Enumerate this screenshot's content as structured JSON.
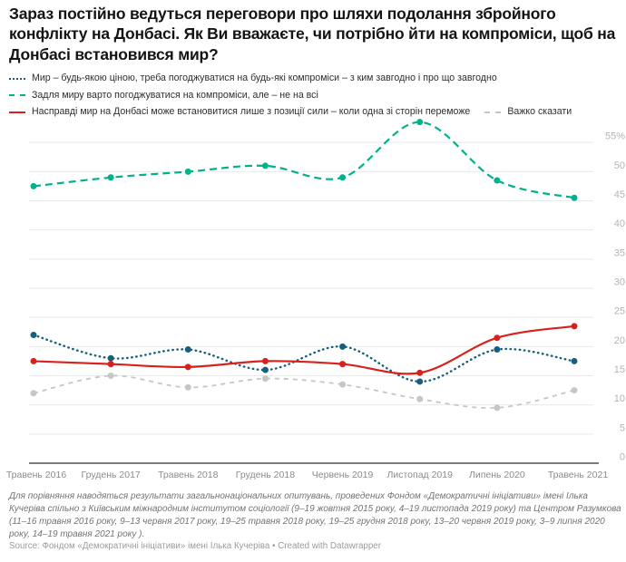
{
  "header": {
    "title": "Зараз постійно ведуться переговори про шляхи подолання збройного конфлікту на Донбасі. Як Ви вважаєте, чи потрібно йти на компроміси, щоб на Донбасі встановився мир?"
  },
  "legend": {
    "items": [
      {
        "label": "Мир – будь-якою ціною, треба погоджуватися на будь-які компроміси – з ким завгодно і про що завгодно",
        "color": "#17607d",
        "style": "dotted"
      },
      {
        "label": "Задля миру варто погоджуватися на компроміси, але – не на всі",
        "color": "#00b189",
        "style": "dashed"
      },
      {
        "label": "Насправді мир на Донбасі може встановитися лише з позиції сили – коли одна зі сторін переможе",
        "color": "#d8211c",
        "style": "solid"
      },
      {
        "label": "Важко сказати",
        "color": "#c6c6c6",
        "style": "dashed"
      }
    ]
  },
  "chart_data": {
    "type": "line",
    "categories": [
      "Травень 2016",
      "Грудень 2017",
      "Травень 2018",
      "Грудень 2018",
      "Червень 2019",
      "Листопад 2019",
      "Липень 2020",
      "Травень 2021"
    ],
    "series": [
      {
        "name": "Мир – будь-якою ціною, треба погоджуватися на будь-які компроміси – з ким завгодно і про що завгодно",
        "color": "#17607d",
        "dash": "dotted",
        "values": [
          22,
          18,
          19.5,
          16,
          20,
          14,
          19.5,
          17.5
        ]
      },
      {
        "name": "Задля миру варто погоджуватися на компроміси, але – не на всі",
        "color": "#00b189",
        "dash": "dashed",
        "values": [
          47.5,
          49,
          50,
          51,
          49,
          58.5,
          48.5,
          45.5
        ]
      },
      {
        "name": "Насправді мир на Донбасі може встановитися лише з позиції сили – коли одна зі сторін переможе",
        "color": "#d8211c",
        "dash": "solid",
        "values": [
          17.5,
          17,
          16.5,
          17.5,
          17,
          15.5,
          21.5,
          23.5
        ]
      },
      {
        "name": "Важко сказати",
        "color": "#c6c6c6",
        "dash": "dashed-light",
        "values": [
          12,
          15,
          13,
          14.5,
          13.5,
          11,
          9.5,
          12.5
        ]
      }
    ],
    "title": "Зараз постійно ведуться переговори про шляхи подолання збройного конфлікту на Донбасі. Як Ви вважаєте, чи потрібно йти на компроміси, щоб на Донбасі встановився мир?",
    "xlabel": "",
    "ylabel": "",
    "ylim": [
      0,
      59
    ],
    "yticks": [
      0,
      5,
      10,
      15,
      20,
      25,
      30,
      35,
      40,
      45,
      50,
      55
    ],
    "ytick_top_suffix": "%",
    "grid": true,
    "legend_position": "top",
    "colors": {
      "grid": "#e9e9e9",
      "baseline": "#2f2f2f",
      "ytick_label": "#b3b3b3",
      "xtick_label": "#8c8c8c"
    }
  },
  "footer": {
    "note": "Для порівняння наводяться результати загальнонаціональних опитувань, проведених Фондом «Демократичні ініціативи» імені Ілька Кучеріва спільно з Київським міжнародним інститутом соціології (9–19 жовтня 2015 року, 4–19 листопада 2019 року) та Центром Разумкова (11–16 травня 2016 року, 9–13 червня 2017 року, 19–25 травня 2018 року, 19–25 грудня 2018 року, 13–20 червня 2019 року, 3–9 липня 2020 року, 14–19 травня 2021 року ).",
    "source_label": "Source:",
    "source_name": "Фондом «Демократичні ініціативи» імені Ілька Кучеріва",
    "separator": "•",
    "credit": "Created with Datawrapper"
  }
}
